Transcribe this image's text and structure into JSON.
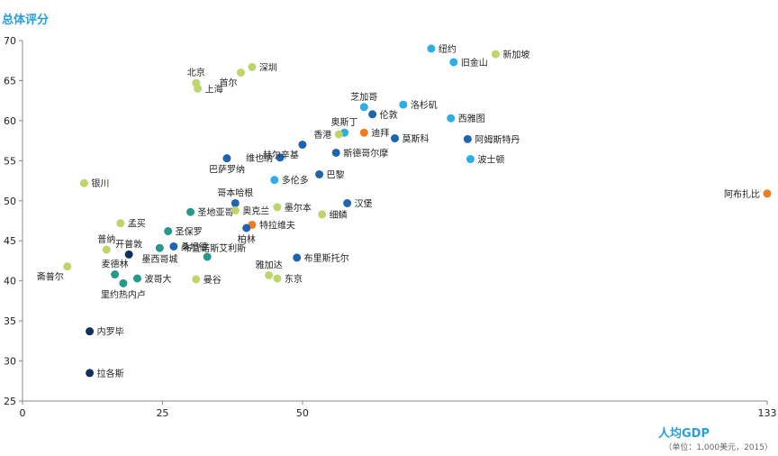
{
  "chart_data": {
    "type": "scatter",
    "ylabel": "总体评分",
    "xlabel": "人均GDP",
    "xunit": "（单位：1,000美元，2015）",
    "xlim": [
      0,
      133
    ],
    "ylim": [
      25,
      70
    ],
    "xticks": [
      0,
      25,
      50,
      133
    ],
    "yticks": [
      25,
      30,
      35,
      40,
      45,
      50,
      55,
      60,
      65,
      70
    ],
    "grid": false,
    "colors": {
      "light_green": "#bdd56b",
      "light_blue": "#2eaee8",
      "dark_blue": "#1f64b0",
      "teal": "#26998c",
      "navy": "#12305e",
      "orange": "#ef7c21",
      "axis": "#888888"
    },
    "points": [
      {
        "name": "纽约",
        "x": 73,
        "y": 69.0,
        "color": "light_blue",
        "label_side": "right"
      },
      {
        "name": "新加坡",
        "x": 84.5,
        "y": 68.3,
        "color": "light_green",
        "label_side": "right"
      },
      {
        "name": "旧金山",
        "x": 77,
        "y": 67.3,
        "color": "light_blue",
        "label_side": "right"
      },
      {
        "name": "深圳",
        "x": 41,
        "y": 66.7,
        "color": "light_green",
        "label_side": "right"
      },
      {
        "name": "首尔",
        "x": 39,
        "y": 66.0,
        "color": "light_green",
        "label_side": "below-left"
      },
      {
        "name": "北京",
        "x": 31,
        "y": 64.7,
        "color": "light_green",
        "label_side": "above"
      },
      {
        "name": "上海",
        "x": 31.3,
        "y": 64.0,
        "color": "light_green",
        "label_side": "right"
      },
      {
        "name": "洛杉矶",
        "x": 68,
        "y": 62.0,
        "color": "light_blue",
        "label_side": "right"
      },
      {
        "name": "芝加哥",
        "x": 61,
        "y": 61.7,
        "color": "light_blue",
        "label_side": "above"
      },
      {
        "name": "伦敦",
        "x": 62.5,
        "y": 60.8,
        "color": "dark_blue",
        "label_side": "right"
      },
      {
        "name": "西雅图",
        "x": 76.5,
        "y": 60.3,
        "color": "light_blue",
        "label_side": "right"
      },
      {
        "name": "奥斯丁",
        "x": 57.5,
        "y": 58.5,
        "color": "light_blue",
        "label_side": "above"
      },
      {
        "name": "香港",
        "x": 56.5,
        "y": 58.3,
        "color": "light_green",
        "label_side": "left"
      },
      {
        "name": "迪拜",
        "x": 61,
        "y": 58.5,
        "color": "orange",
        "label_side": "right"
      },
      {
        "name": "莫斯科",
        "x": 66.5,
        "y": 57.8,
        "color": "dark_blue",
        "label_side": "right"
      },
      {
        "name": "阿姆斯特丹",
        "x": 79.5,
        "y": 57.7,
        "color": "dark_blue",
        "label_side": "right"
      },
      {
        "name": "维也纳",
        "x": 46,
        "y": 55.4,
        "color": "dark_blue",
        "label_side": "left"
      },
      {
        "name": "赫尔辛基",
        "x": 50,
        "y": 57.0,
        "color": "dark_blue",
        "label_side": "below-left"
      },
      {
        "name": "斯德哥尔摩",
        "x": 56,
        "y": 56.0,
        "color": "dark_blue",
        "label_side": "right"
      },
      {
        "name": "波士顿",
        "x": 80,
        "y": 55.2,
        "color": "light_blue",
        "label_side": "right"
      },
      {
        "name": "巴萨罗纳",
        "x": 36.5,
        "y": 55.3,
        "color": "dark_blue",
        "label_side": "below"
      },
      {
        "name": "巴黎",
        "x": 53,
        "y": 53.3,
        "color": "dark_blue",
        "label_side": "right"
      },
      {
        "name": "多伦多",
        "x": 45,
        "y": 52.6,
        "color": "light_blue",
        "label_side": "right"
      },
      {
        "name": "银川",
        "x": 11,
        "y": 52.2,
        "color": "light_green",
        "label_side": "right"
      },
      {
        "name": "阿布扎比",
        "x": 133,
        "y": 50.9,
        "color": "orange",
        "label_side": "left"
      },
      {
        "name": "哥本哈根",
        "x": 38,
        "y": 49.7,
        "color": "dark_blue",
        "label_side": "above"
      },
      {
        "name": "汉堡",
        "x": 58,
        "y": 49.7,
        "color": "dark_blue",
        "label_side": "right"
      },
      {
        "name": "墨尔本",
        "x": 45.5,
        "y": 49.2,
        "color": "light_green",
        "label_side": "right"
      },
      {
        "name": "圣地亚哥",
        "x": 30,
        "y": 48.6,
        "color": "teal",
        "label_side": "right"
      },
      {
        "name": "奥克兰",
        "x": 38,
        "y": 48.8,
        "color": "light_green",
        "label_side": "right"
      },
      {
        "name": "细鳞",
        "x": 53.5,
        "y": 48.3,
        "color": "light_green",
        "label_side": "right"
      },
      {
        "name": "孟买",
        "x": 17.5,
        "y": 47.2,
        "color": "light_green",
        "label_side": "right"
      },
      {
        "name": "特拉维夫",
        "x": 41,
        "y": 47.0,
        "color": "orange",
        "label_side": "right"
      },
      {
        "name": "柏林",
        "x": 40,
        "y": 46.6,
        "color": "dark_blue",
        "label_side": "below"
      },
      {
        "name": "圣保罗",
        "x": 26,
        "y": 46.2,
        "color": "teal",
        "label_side": "right"
      },
      {
        "name": "普纳",
        "x": 15,
        "y": 43.9,
        "color": "light_green",
        "label_side": "above"
      },
      {
        "name": "开普敦",
        "x": 19,
        "y": 43.3,
        "color": "navy",
        "label_side": "above"
      },
      {
        "name": "桑坦德",
        "x": 27,
        "y": 44.3,
        "color": "dark_blue",
        "label_side": "right"
      },
      {
        "name": "墨西哥城",
        "x": 24.5,
        "y": 44.1,
        "color": "teal",
        "label_side": "below"
      },
      {
        "name": "布宜诺斯艾利斯",
        "x": 33,
        "y": 43.0,
        "color": "teal",
        "label_side": "above-right"
      },
      {
        "name": "布里斯托尔",
        "x": 49,
        "y": 42.9,
        "color": "dark_blue",
        "label_side": "right"
      },
      {
        "name": "雅加达",
        "x": 44,
        "y": 40.7,
        "color": "light_green",
        "label_side": "above"
      },
      {
        "name": "东京",
        "x": 45.5,
        "y": 40.3,
        "color": "light_green",
        "label_side": "right"
      },
      {
        "name": "麦德林",
        "x": 16.5,
        "y": 40.8,
        "color": "teal",
        "label_side": "above"
      },
      {
        "name": "波哥大",
        "x": 20.5,
        "y": 40.3,
        "color": "teal",
        "label_side": "right"
      },
      {
        "name": "曼谷",
        "x": 31,
        "y": 40.2,
        "color": "light_green",
        "label_side": "right"
      },
      {
        "name": "里约热内卢",
        "x": 18,
        "y": 39.7,
        "color": "teal",
        "label_side": "below"
      },
      {
        "name": "斋普尔",
        "x": 8,
        "y": 41.8,
        "color": "light_green",
        "label_side": "below-left"
      },
      {
        "name": "内罗毕",
        "x": 12,
        "y": 33.7,
        "color": "navy",
        "label_side": "right"
      },
      {
        "name": "拉各斯",
        "x": 12,
        "y": 28.5,
        "color": "navy",
        "label_side": "right"
      }
    ]
  }
}
